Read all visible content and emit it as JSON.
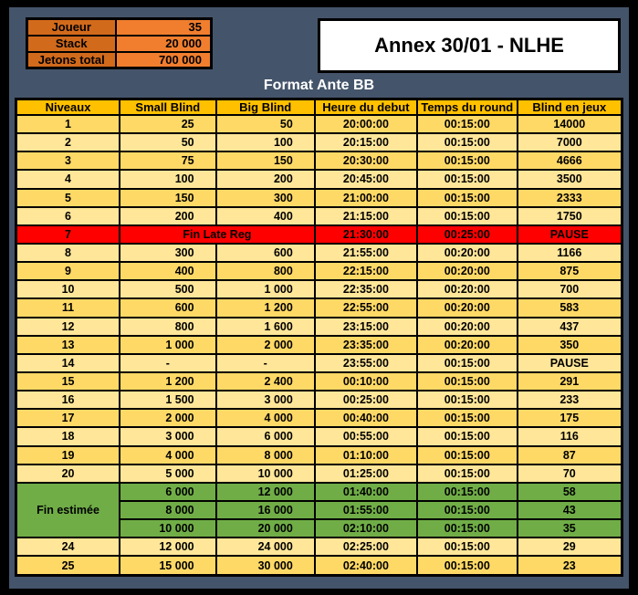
{
  "title": "Annex 30/01 - NLHE",
  "subtitle": "Format Ante BB",
  "info_table": {
    "rows": [
      {
        "label": "Joueur",
        "value": "35"
      },
      {
        "label": "Stack",
        "value": "20 000"
      },
      {
        "label": "Jetons total",
        "value": "700 000"
      }
    ]
  },
  "blinds_table": {
    "headers": [
      "Niveaux",
      "Small Blind",
      "Big Blind",
      "Heure du debut",
      "Temps du round",
      "Blind en jeux"
    ],
    "rows": [
      {
        "level": "1",
        "sb": "25",
        "bb": "50",
        "start": "20:00:00",
        "round": "00:15:00",
        "chips": "14000",
        "style": "dark"
      },
      {
        "level": "2",
        "sb": "50",
        "bb": "100",
        "start": "20:15:00",
        "round": "00:15:00",
        "chips": "7000",
        "style": "light"
      },
      {
        "level": "3",
        "sb": "75",
        "bb": "150",
        "start": "20:30:00",
        "round": "00:15:00",
        "chips": "4666",
        "style": "dark"
      },
      {
        "level": "4",
        "sb": "100",
        "bb": "200",
        "start": "20:45:00",
        "round": "00:15:00",
        "chips": "3500",
        "style": "light"
      },
      {
        "level": "5",
        "sb": "150",
        "bb": "300",
        "start": "21:00:00",
        "round": "00:15:00",
        "chips": "2333",
        "style": "dark"
      },
      {
        "level": "6",
        "sb": "200",
        "bb": "400",
        "start": "21:15:00",
        "round": "00:15:00",
        "chips": "1750",
        "style": "light"
      },
      {
        "level": "7",
        "merged": "Fin Late Reg",
        "start": "21:30:00",
        "round": "00:25:00",
        "chips": "PAUSE",
        "style": "red"
      },
      {
        "level": "8",
        "sb": "300",
        "bb": "600",
        "start": "21:55:00",
        "round": "00:20:00",
        "chips": "1166",
        "style": "light"
      },
      {
        "level": "9",
        "sb": "400",
        "bb": "800",
        "start": "22:15:00",
        "round": "00:20:00",
        "chips": "875",
        "style": "dark"
      },
      {
        "level": "10",
        "sb": "500",
        "bb": "1 000",
        "start": "22:35:00",
        "round": "00:20:00",
        "chips": "700",
        "style": "light"
      },
      {
        "level": "11",
        "sb": "600",
        "bb": "1 200",
        "start": "22:55:00",
        "round": "00:20:00",
        "chips": "583",
        "style": "dark"
      },
      {
        "level": "12",
        "sb": "800",
        "bb": "1 600",
        "start": "23:15:00",
        "round": "00:20:00",
        "chips": "437",
        "style": "light"
      },
      {
        "level": "13",
        "sb": "1 000",
        "bb": "2 000",
        "start": "23:35:00",
        "round": "00:20:00",
        "chips": "350",
        "style": "dark"
      },
      {
        "level": "14",
        "sb": "-",
        "bb": "-",
        "start": "23:55:00",
        "round": "00:15:00",
        "chips": "PAUSE",
        "style": "light"
      },
      {
        "level": "15",
        "sb": "1 200",
        "bb": "2 400",
        "start": "00:10:00",
        "round": "00:15:00",
        "chips": "291",
        "style": "dark"
      },
      {
        "level": "16",
        "sb": "1 500",
        "bb": "3 000",
        "start": "00:25:00",
        "round": "00:15:00",
        "chips": "233",
        "style": "light"
      },
      {
        "level": "17",
        "sb": "2 000",
        "bb": "4 000",
        "start": "00:40:00",
        "round": "00:15:00",
        "chips": "175",
        "style": "dark"
      },
      {
        "level": "18",
        "sb": "3 000",
        "bb": "6 000",
        "start": "00:55:00",
        "round": "00:15:00",
        "chips": "116",
        "style": "light"
      },
      {
        "level": "19",
        "sb": "4 000",
        "bb": "8 000",
        "start": "01:10:00",
        "round": "00:15:00",
        "chips": "87",
        "style": "dark"
      },
      {
        "level": "20",
        "sb": "5 000",
        "bb": "10 000",
        "start": "01:25:00",
        "round": "00:15:00",
        "chips": "70",
        "style": "light"
      },
      {
        "level": "Fin estimée",
        "level_rowspan": 3,
        "sb": "6 000",
        "bb": "12 000",
        "start": "01:40:00",
        "round": "00:15:00",
        "chips": "58",
        "style": "green"
      },
      {
        "sb": "8 000",
        "bb": "16 000",
        "start": "01:55:00",
        "round": "00:15:00",
        "chips": "43",
        "style": "green"
      },
      {
        "sb": "10 000",
        "bb": "20 000",
        "start": "02:10:00",
        "round": "00:15:00",
        "chips": "35",
        "style": "green"
      },
      {
        "level": "24",
        "sb": "12 000",
        "bb": "24 000",
        "start": "02:25:00",
        "round": "00:15:00",
        "chips": "29",
        "style": "light"
      },
      {
        "level": "25",
        "sb": "15 000",
        "bb": "30 000",
        "start": "02:40:00",
        "round": "00:15:00",
        "chips": "23",
        "style": "dark"
      }
    ]
  },
  "colors": {
    "background": "#44546A",
    "header": "#FFC000",
    "row_dark": "#FFD966",
    "row_light": "#FFE699",
    "pause_red": "#FF0000",
    "end_green": "#70AD47",
    "label_orange": "#D26A1C",
    "value_orange": "#F07E2E",
    "text": "#000000"
  }
}
